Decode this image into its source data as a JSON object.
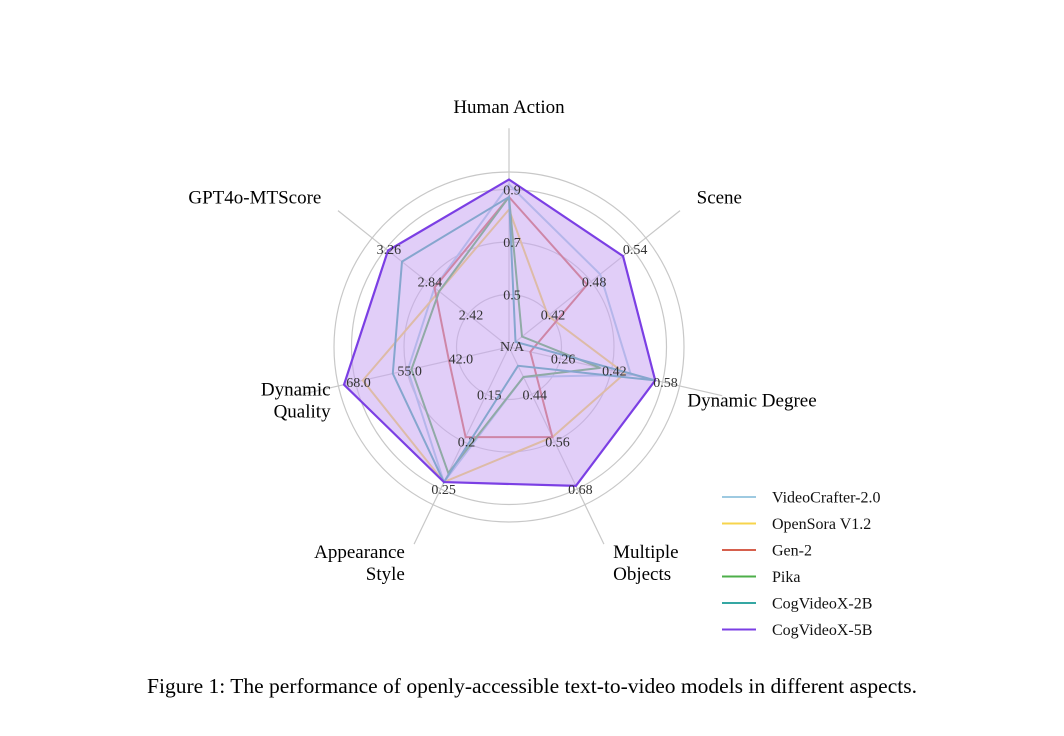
{
  "caption": "Figure 1: The performance of openly-accessible text-to-video models in different aspects.",
  "chart_data": {
    "type": "radar",
    "axes": [
      {
        "name": "Human Action",
        "ticks": [
          "0.5",
          "0.7",
          "0.9"
        ]
      },
      {
        "name": "Scene",
        "ticks": [
          "0.42",
          "0.48",
          "0.54"
        ]
      },
      {
        "name": "Dynamic Degree",
        "ticks": [
          "0.26",
          "0.42",
          "0.58"
        ]
      },
      {
        "name": "Multiple Objects",
        "ticks": [
          "0.44",
          "0.56",
          "0.68"
        ]
      },
      {
        "name": "Appearance Style",
        "ticks": [
          "0.15",
          "0.2",
          "0.25"
        ]
      },
      {
        "name": "Dynamic Quality",
        "ticks": [
          "42.0",
          "55.0",
          "68.0"
        ]
      },
      {
        "name": "GPT4o-MTScore",
        "ticks": [
          "2.42",
          "2.84",
          "3.26"
        ]
      }
    ],
    "center_label": "N/A",
    "grid": true,
    "legend_position": "bottom-right",
    "series": [
      {
        "name": "VideoCrafter-2.0",
        "color": "#9ecae1",
        "fill": false,
        "values": [
          0.95,
          0.5,
          0.5,
          0.4,
          0.25,
          56.0,
          2.8
        ]
      },
      {
        "name": "OpenSora V1.2",
        "color": "#f7d44c",
        "fill": false,
        "values": [
          0.85,
          0.42,
          0.48,
          0.56,
          0.25,
          68.0,
          2.75
        ]
      },
      {
        "name": "Gen-2",
        "color": "#d6604d",
        "fill": false,
        "values": [
          0.9,
          0.48,
          0.17,
          0.56,
          0.2,
          45.0,
          2.8
        ]
      },
      {
        "name": "Pika",
        "color": "#4daf4a",
        "fill": false,
        "values": [
          0.9,
          0.38,
          0.4,
          0.4,
          0.24,
          55.0,
          2.75
        ]
      },
      {
        "name": "CogVideoX-2B",
        "color": "#35a7a3",
        "fill": false,
        "values": [
          0.9,
          0.37,
          0.58,
          0.37,
          0.25,
          60.0,
          3.15
        ]
      },
      {
        "name": "CogVideoX-5B",
        "color": "#7b3fe4",
        "fill": true,
        "fill_color": "#c9a6f2",
        "values": [
          0.97,
          0.535,
          0.58,
          0.69,
          0.25,
          73.0,
          3.3
        ]
      }
    ]
  }
}
